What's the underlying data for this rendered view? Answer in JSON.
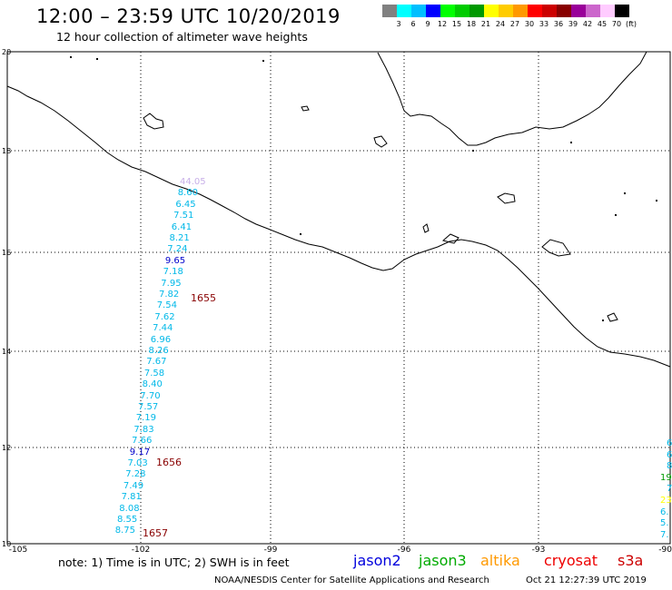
{
  "header": {
    "title": "12:00 – 23:59 UTC 10/20/2019",
    "subtitle": "12 hour collection of altimeter wave heights"
  },
  "legend": {
    "swatches": [
      {
        "color": "#808080"
      },
      {
        "color": "#00ffff"
      },
      {
        "color": "#00bfff"
      },
      {
        "color": "#0000ff"
      },
      {
        "color": "#00ff00"
      },
      {
        "color": "#00cc00"
      },
      {
        "color": "#009900"
      },
      {
        "color": "#ffff00"
      },
      {
        "color": "#ffcc00"
      },
      {
        "color": "#ff9900"
      },
      {
        "color": "#ff0000"
      },
      {
        "color": "#cc0000"
      },
      {
        "color": "#880000"
      },
      {
        "color": "#990099"
      },
      {
        "color": "#cc66cc"
      },
      {
        "color": "#ffccff"
      },
      {
        "color": "#000000"
      }
    ],
    "labels": [
      "3",
      "6",
      "9",
      "12",
      "15",
      "18",
      "21",
      "24",
      "27",
      "30",
      "33",
      "36",
      "39",
      "42",
      "45",
      "70",
      "(ft)"
    ]
  },
  "map": {
    "lat_labels": [
      "20",
      "18",
      "16",
      "14",
      "12",
      "10"
    ],
    "lon_labels": [
      "-105",
      "-102",
      "-99",
      "-96",
      "-93",
      "-90"
    ]
  },
  "observations": [
    {
      "text": "44.05",
      "color": "#c8b0e8"
    },
    {
      "text": "8.60",
      "color": "#00b8e8"
    },
    {
      "text": "6.45",
      "color": "#00b8e8"
    },
    {
      "text": "7.51",
      "color": "#00b8e8"
    },
    {
      "text": "6.41",
      "color": "#00b8e8"
    },
    {
      "text": "8.21",
      "color": "#00b8e8"
    },
    {
      "text": "7.24",
      "color": "#00b8e8"
    },
    {
      "text": "9.65",
      "color": "#0000cc"
    },
    {
      "text": "7.18",
      "color": "#00b8e8"
    },
    {
      "text": "7.95",
      "color": "#00b8e8"
    },
    {
      "text": "7.82",
      "color": "#00b8e8"
    },
    {
      "text": "7.54",
      "color": "#00b8e8"
    },
    {
      "text": "7.62",
      "color": "#00b8e8"
    },
    {
      "text": "7.44",
      "color": "#00b8e8"
    },
    {
      "text": "6.96",
      "color": "#00b8e8"
    },
    {
      "text": "8.26",
      "color": "#00b8e8"
    },
    {
      "text": "7.67",
      "color": "#00b8e8"
    },
    {
      "text": "7.58",
      "color": "#00b8e8"
    },
    {
      "text": "8.40",
      "color": "#00b8e8"
    },
    {
      "text": "7.70",
      "color": "#00b8e8"
    },
    {
      "text": "7.57",
      "color": "#00b8e8"
    },
    {
      "text": "7.19",
      "color": "#00b8e8"
    },
    {
      "text": "7.83",
      "color": "#00b8e8"
    },
    {
      "text": "7.66",
      "color": "#00b8e8"
    },
    {
      "text": "9.17",
      "color": "#0000cc"
    },
    {
      "text": "7.03",
      "color": "#00b8e8"
    },
    {
      "text": "7.28",
      "color": "#00b8e8"
    },
    {
      "text": "7.49",
      "color": "#00b8e8"
    },
    {
      "text": "7.81",
      "color": "#00b8e8"
    },
    {
      "text": "8.08",
      "color": "#00b8e8"
    },
    {
      "text": "8.55",
      "color": "#00b8e8"
    },
    {
      "text": "8.75",
      "color": "#00b8e8"
    }
  ],
  "edge_observations": [
    {
      "text": "6",
      "color": "#00b8e8"
    },
    {
      "text": "6",
      "color": "#00b8e8"
    },
    {
      "text": "8",
      "color": "#00b8e8"
    },
    {
      "text": "19",
      "color": "#009900"
    },
    {
      "text": "7",
      "color": "#00b8e8"
    },
    {
      "text": "23",
      "color": "#ffff00"
    },
    {
      "text": "6.",
      "color": "#00b8e8"
    },
    {
      "text": "5.",
      "color": "#00b8e8"
    },
    {
      "text": "7.",
      "color": "#00b8e8"
    }
  ],
  "pass_times": [
    {
      "text": "1655",
      "color": "#880000"
    },
    {
      "text": "1656",
      "color": "#880000"
    },
    {
      "text": "1657",
      "color": "#880000"
    }
  ],
  "footer": {
    "note": "note:  1) Time is in UTC;  2) SWH is in feet",
    "missions": [
      {
        "name": "jason2",
        "color": "#0000dd"
      },
      {
        "name": "jason3",
        "color": "#00aa00"
      },
      {
        "name": "altika",
        "color": "#ff9900"
      },
      {
        "name": "cryosat",
        "color": "#ee0000"
      },
      {
        "name": "s3a",
        "color": "#cc0000"
      }
    ],
    "credit": "NOAA/NESDIS Center for Satellite Applications and Research",
    "timestamp": "Oct 21 12:27:39 UTC 2019"
  }
}
